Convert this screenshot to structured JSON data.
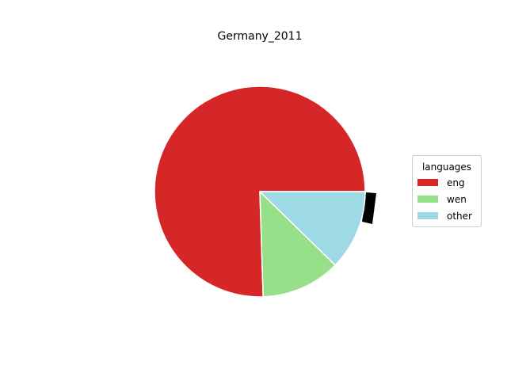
{
  "chart_data": {
    "type": "pie",
    "title": "Germany_2011",
    "labels": [
      "eng",
      "wen",
      "other"
    ],
    "values": [
      75.5,
      12.2,
      12.3
    ],
    "colors": [
      "#d62728",
      "#98df8a",
      "#9edae5"
    ],
    "legend": {
      "title": "languages",
      "placement": "right"
    },
    "start_angle_deg": 0,
    "direction": "counterclockwise"
  }
}
